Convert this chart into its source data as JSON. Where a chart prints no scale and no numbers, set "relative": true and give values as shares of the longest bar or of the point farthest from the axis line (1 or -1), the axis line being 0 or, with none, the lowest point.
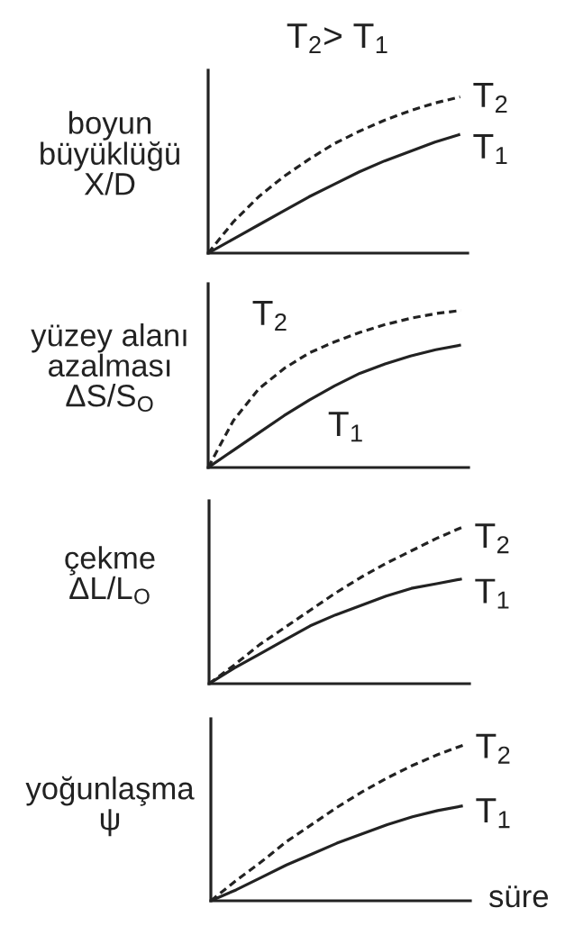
{
  "chart_data": [
    {
      "type": "line",
      "title": "T$_{2}$> T$_{1}$",
      "ylabel": "boyun\nbüyüklüğü\nX/D",
      "relative": true,
      "categories": [
        null,
        null,
        null,
        null,
        null,
        null,
        null,
        null,
        null,
        null,
        null
      ],
      "series": [
        {
          "name": "T$_{2}$",
          "color": "#222222",
          "line_style": "dashed",
          "values": [
            0,
            0.2,
            0.36,
            0.49,
            0.6,
            0.7,
            0.78,
            0.85,
            0.91,
            0.96,
            1.0
          ]
        },
        {
          "name": "T$_{1}$",
          "color": "#222222",
          "line_style": "solid",
          "values": [
            0,
            0.09,
            0.18,
            0.27,
            0.36,
            0.44,
            0.52,
            0.59,
            0.65,
            0.71,
            0.76
          ]
        }
      ]
    },
    {
      "type": "line",
      "ylabel": "yüzey alanı\nazalması\nΔS/S$_{O}$",
      "relative": true,
      "categories": [
        null,
        null,
        null,
        null,
        null,
        null,
        null,
        null,
        null,
        null,
        null
      ],
      "series": [
        {
          "name": "T$_{2}$",
          "color": "#222222",
          "line_style": "dashed",
          "values": [
            0,
            0.3,
            0.5,
            0.63,
            0.73,
            0.8,
            0.86,
            0.91,
            0.95,
            0.98,
            1.0
          ]
        },
        {
          "name": "T$_{1}$",
          "color": "#222222",
          "line_style": "solid",
          "values": [
            0,
            0.11,
            0.22,
            0.33,
            0.43,
            0.52,
            0.6,
            0.66,
            0.71,
            0.75,
            0.78
          ]
        }
      ]
    },
    {
      "type": "line",
      "ylabel": "çekme\nΔL/L$_{O}$",
      "relative": true,
      "categories": [
        null,
        null,
        null,
        null,
        null,
        null,
        null,
        null,
        null,
        null,
        null
      ],
      "series": [
        {
          "name": "T$_{2}$",
          "color": "#222222",
          "line_style": "dashed",
          "values": [
            0,
            0.12,
            0.25,
            0.36,
            0.47,
            0.58,
            0.68,
            0.77,
            0.85,
            0.93,
            1.0
          ]
        },
        {
          "name": "T$_{1}$",
          "color": "#222222",
          "line_style": "solid",
          "values": [
            0,
            0.1,
            0.19,
            0.28,
            0.37,
            0.44,
            0.5,
            0.56,
            0.61,
            0.64,
            0.67
          ]
        }
      ]
    },
    {
      "type": "line",
      "ylabel": "yoğunlaşma\nψ",
      "xlabel": "süre",
      "relative": true,
      "categories": [
        null,
        null,
        null,
        null,
        null,
        null,
        null,
        null,
        null,
        null,
        null
      ],
      "series": [
        {
          "name": "T$_{2}$",
          "color": "#222222",
          "line_style": "dashed",
          "values": [
            0,
            0.13,
            0.25,
            0.38,
            0.49,
            0.6,
            0.7,
            0.79,
            0.87,
            0.94,
            1.0
          ]
        },
        {
          "name": "T$_{1}$",
          "color": "#222222",
          "line_style": "solid",
          "values": [
            0,
            0.07,
            0.15,
            0.23,
            0.3,
            0.37,
            0.43,
            0.49,
            0.54,
            0.58,
            0.61
          ]
        }
      ]
    }
  ]
}
